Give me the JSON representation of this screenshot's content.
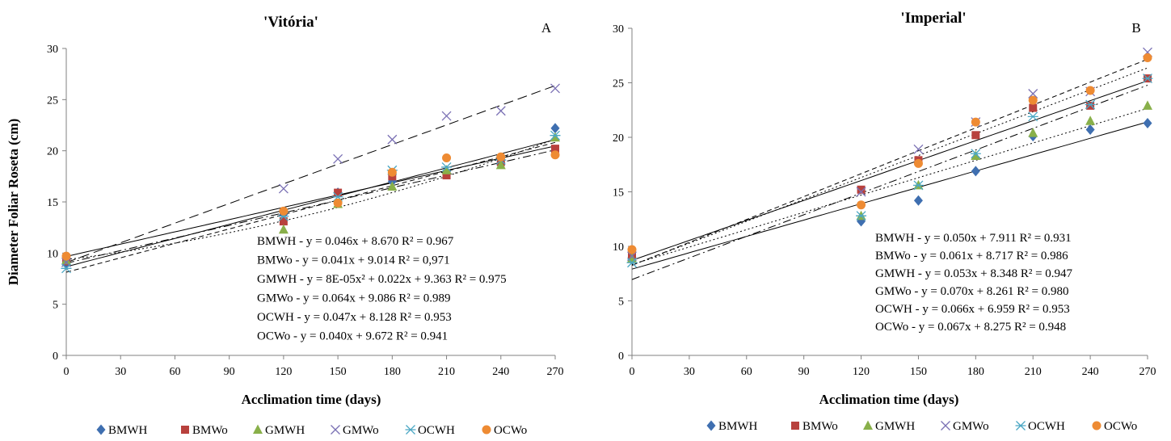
{
  "ylabel": "Diameter Foliar Roseta (cm)",
  "colors": {
    "BMWH": "#3f6fb0",
    "BMWo": "#b8413d",
    "GMWH": "#89b04a",
    "GMWo": "#7a70b4",
    "OCWH": "#4ba7c4",
    "OCWo": "#ee8b33"
  },
  "chart_data": [
    {
      "type": "scatter",
      "title": "'Vitória'",
      "panel_letter": "A",
      "xlabel": "Acclimation time (days)",
      "ylabel": "Diameter Foliar Roseta (cm)",
      "xlim": [
        0,
        270
      ],
      "ylim": [
        0,
        30
      ],
      "xticks": [
        "0",
        "30",
        "60",
        "90",
        "120",
        "150",
        "180",
        "210",
        "240",
        "270"
      ],
      "yticks": [
        "0",
        "5",
        "10",
        "15",
        "20",
        "25",
        "30"
      ],
      "x": [
        0,
        120,
        150,
        180,
        210,
        240,
        270
      ],
      "series": [
        {
          "name": "BMWH",
          "marker": "diamond",
          "values": [
            9.0,
            13.8,
            15.9,
            17.0,
            17.8,
            18.8,
            22.2
          ]
        },
        {
          "name": "BMWo",
          "marker": "square",
          "values": [
            9.2,
            13.1,
            15.9,
            17.5,
            17.6,
            18.9,
            20.2
          ]
        },
        {
          "name": "GMWH",
          "marker": "triangle",
          "values": [
            9.3,
            12.3,
            14.8,
            16.5,
            18.1,
            18.6,
            21.3
          ]
        },
        {
          "name": "GMWo",
          "marker": "x",
          "values": [
            9.1,
            16.3,
            19.2,
            21.1,
            23.4,
            23.9,
            26.1
          ]
        },
        {
          "name": "OCWH",
          "marker": "star",
          "values": [
            8.5,
            13.6,
            15.5,
            18.1,
            18.4,
            19.1,
            21.5
          ]
        },
        {
          "name": "OCWo",
          "marker": "circle",
          "values": [
            9.7,
            14.1,
            14.9,
            17.9,
            19.3,
            19.4,
            19.6
          ]
        }
      ],
      "equations": [
        "BMWH - y = 0.046x + 8.670   R² = 0.967",
        "BMWo - y = 0.041x + 9.014   R² = 0,971",
        "GMWH - y = 8E-05x² + 0.022x + 9.363   R² = 0.975",
        "GMWo - y = 0.064x + 9.086   R² = 0.989",
        "OCWH - y = 0.047x + 8.128   R² = 0.953",
        "OCWo - y = 0.040x + 9.672   R² = 0.941"
      ],
      "trend_lines": [
        {
          "series": "BMWH",
          "coef": [
            8.67,
            0.046,
            0
          ],
          "dash": "solid"
        },
        {
          "series": "BMWo",
          "coef": [
            9.014,
            0.041,
            0
          ],
          "dash": "dashdot"
        },
        {
          "series": "GMWH",
          "coef": [
            9.363,
            0.022,
            8e-05
          ],
          "dash": "dotted"
        },
        {
          "series": "GMWo",
          "coef": [
            9.086,
            0.064,
            0
          ],
          "dash": "longdash"
        },
        {
          "series": "OCWH",
          "coef": [
            8.128,
            0.047,
            0
          ],
          "dash": "dashed"
        },
        {
          "series": "OCWo",
          "coef": [
            9.672,
            0.04,
            0
          ],
          "dash": "solid"
        }
      ],
      "legend": [
        "BMWH",
        "BMWo",
        "GMWH",
        "GMWo",
        "OCWH",
        "OCWo"
      ],
      "legend_position": "bottom",
      "grid": false
    },
    {
      "type": "scatter",
      "title": "'Imperial'",
      "panel_letter": "B",
      "xlabel": "Acclimation time (days)",
      "ylabel": "",
      "xlim": [
        0,
        270
      ],
      "ylim": [
        0,
        30
      ],
      "xticks": [
        "0",
        "30",
        "60",
        "90",
        "120",
        "150",
        "180",
        "210",
        "240",
        "270"
      ],
      "yticks": [
        "0",
        "5",
        "10",
        "15",
        "20",
        "25",
        "30"
      ],
      "x": [
        0,
        120,
        150,
        180,
        210,
        240,
        270
      ],
      "series": [
        {
          "name": "BMWH",
          "marker": "diamond",
          "values": [
            9.0,
            12.3,
            14.2,
            16.9,
            20.1,
            20.7,
            21.3
          ]
        },
        {
          "name": "BMWo",
          "marker": "square",
          "values": [
            9.2,
            15.2,
            17.9,
            20.2,
            22.7,
            22.9,
            25.4
          ]
        },
        {
          "name": "GMWH",
          "marker": "triangle",
          "values": [
            8.9,
            12.8,
            15.6,
            18.3,
            20.4,
            21.5,
            22.9
          ]
        },
        {
          "name": "GMWo",
          "marker": "x",
          "values": [
            9.1,
            15.0,
            18.9,
            21.4,
            24.0,
            24.2,
            27.8
          ]
        },
        {
          "name": "OCWH",
          "marker": "star",
          "values": [
            8.5,
            12.8,
            15.6,
            18.5,
            21.9,
            23.0,
            25.4
          ]
        },
        {
          "name": "OCWo",
          "marker": "circle",
          "values": [
            9.7,
            13.8,
            17.6,
            21.4,
            23.4,
            24.3,
            27.3
          ]
        }
      ],
      "equations": [
        "BMWH - y = 0.050x + 7.911   R² = 0.931",
        "BMWo - y = 0.061x + 8.717   R² = 0.986",
        "GMWH - y = 0.053x + 8.348   R² = 0.947",
        "GMWo - y = 0.070x + 8.261   R² = 0.980",
        "OCWH - y = 0.066x + 6.959   R² = 0.953",
        "OCWo - y = 0.067x + 8.275   R² = 0.948"
      ],
      "trend_lines": [
        {
          "series": "BMWH",
          "coef": [
            7.911,
            0.05,
            0
          ],
          "dash": "solid"
        },
        {
          "series": "BMWo",
          "coef": [
            8.717,
            0.061,
            0
          ],
          "dash": "solid"
        },
        {
          "series": "GMWH",
          "coef": [
            8.348,
            0.053,
            0
          ],
          "dash": "dotted"
        },
        {
          "series": "GMWo",
          "coef": [
            8.261,
            0.07,
            0
          ],
          "dash": "dashed"
        },
        {
          "series": "OCWH",
          "coef": [
            6.959,
            0.066,
            0
          ],
          "dash": "dashdot"
        },
        {
          "series": "OCWo",
          "coef": [
            8.275,
            0.067,
            0
          ],
          "dash": "dotted"
        }
      ],
      "legend": [
        "BMWH",
        "BMWo",
        "GMWH",
        "GMWo",
        "OCWH",
        "OCWo"
      ],
      "legend_position": "bottom",
      "grid": false
    }
  ]
}
